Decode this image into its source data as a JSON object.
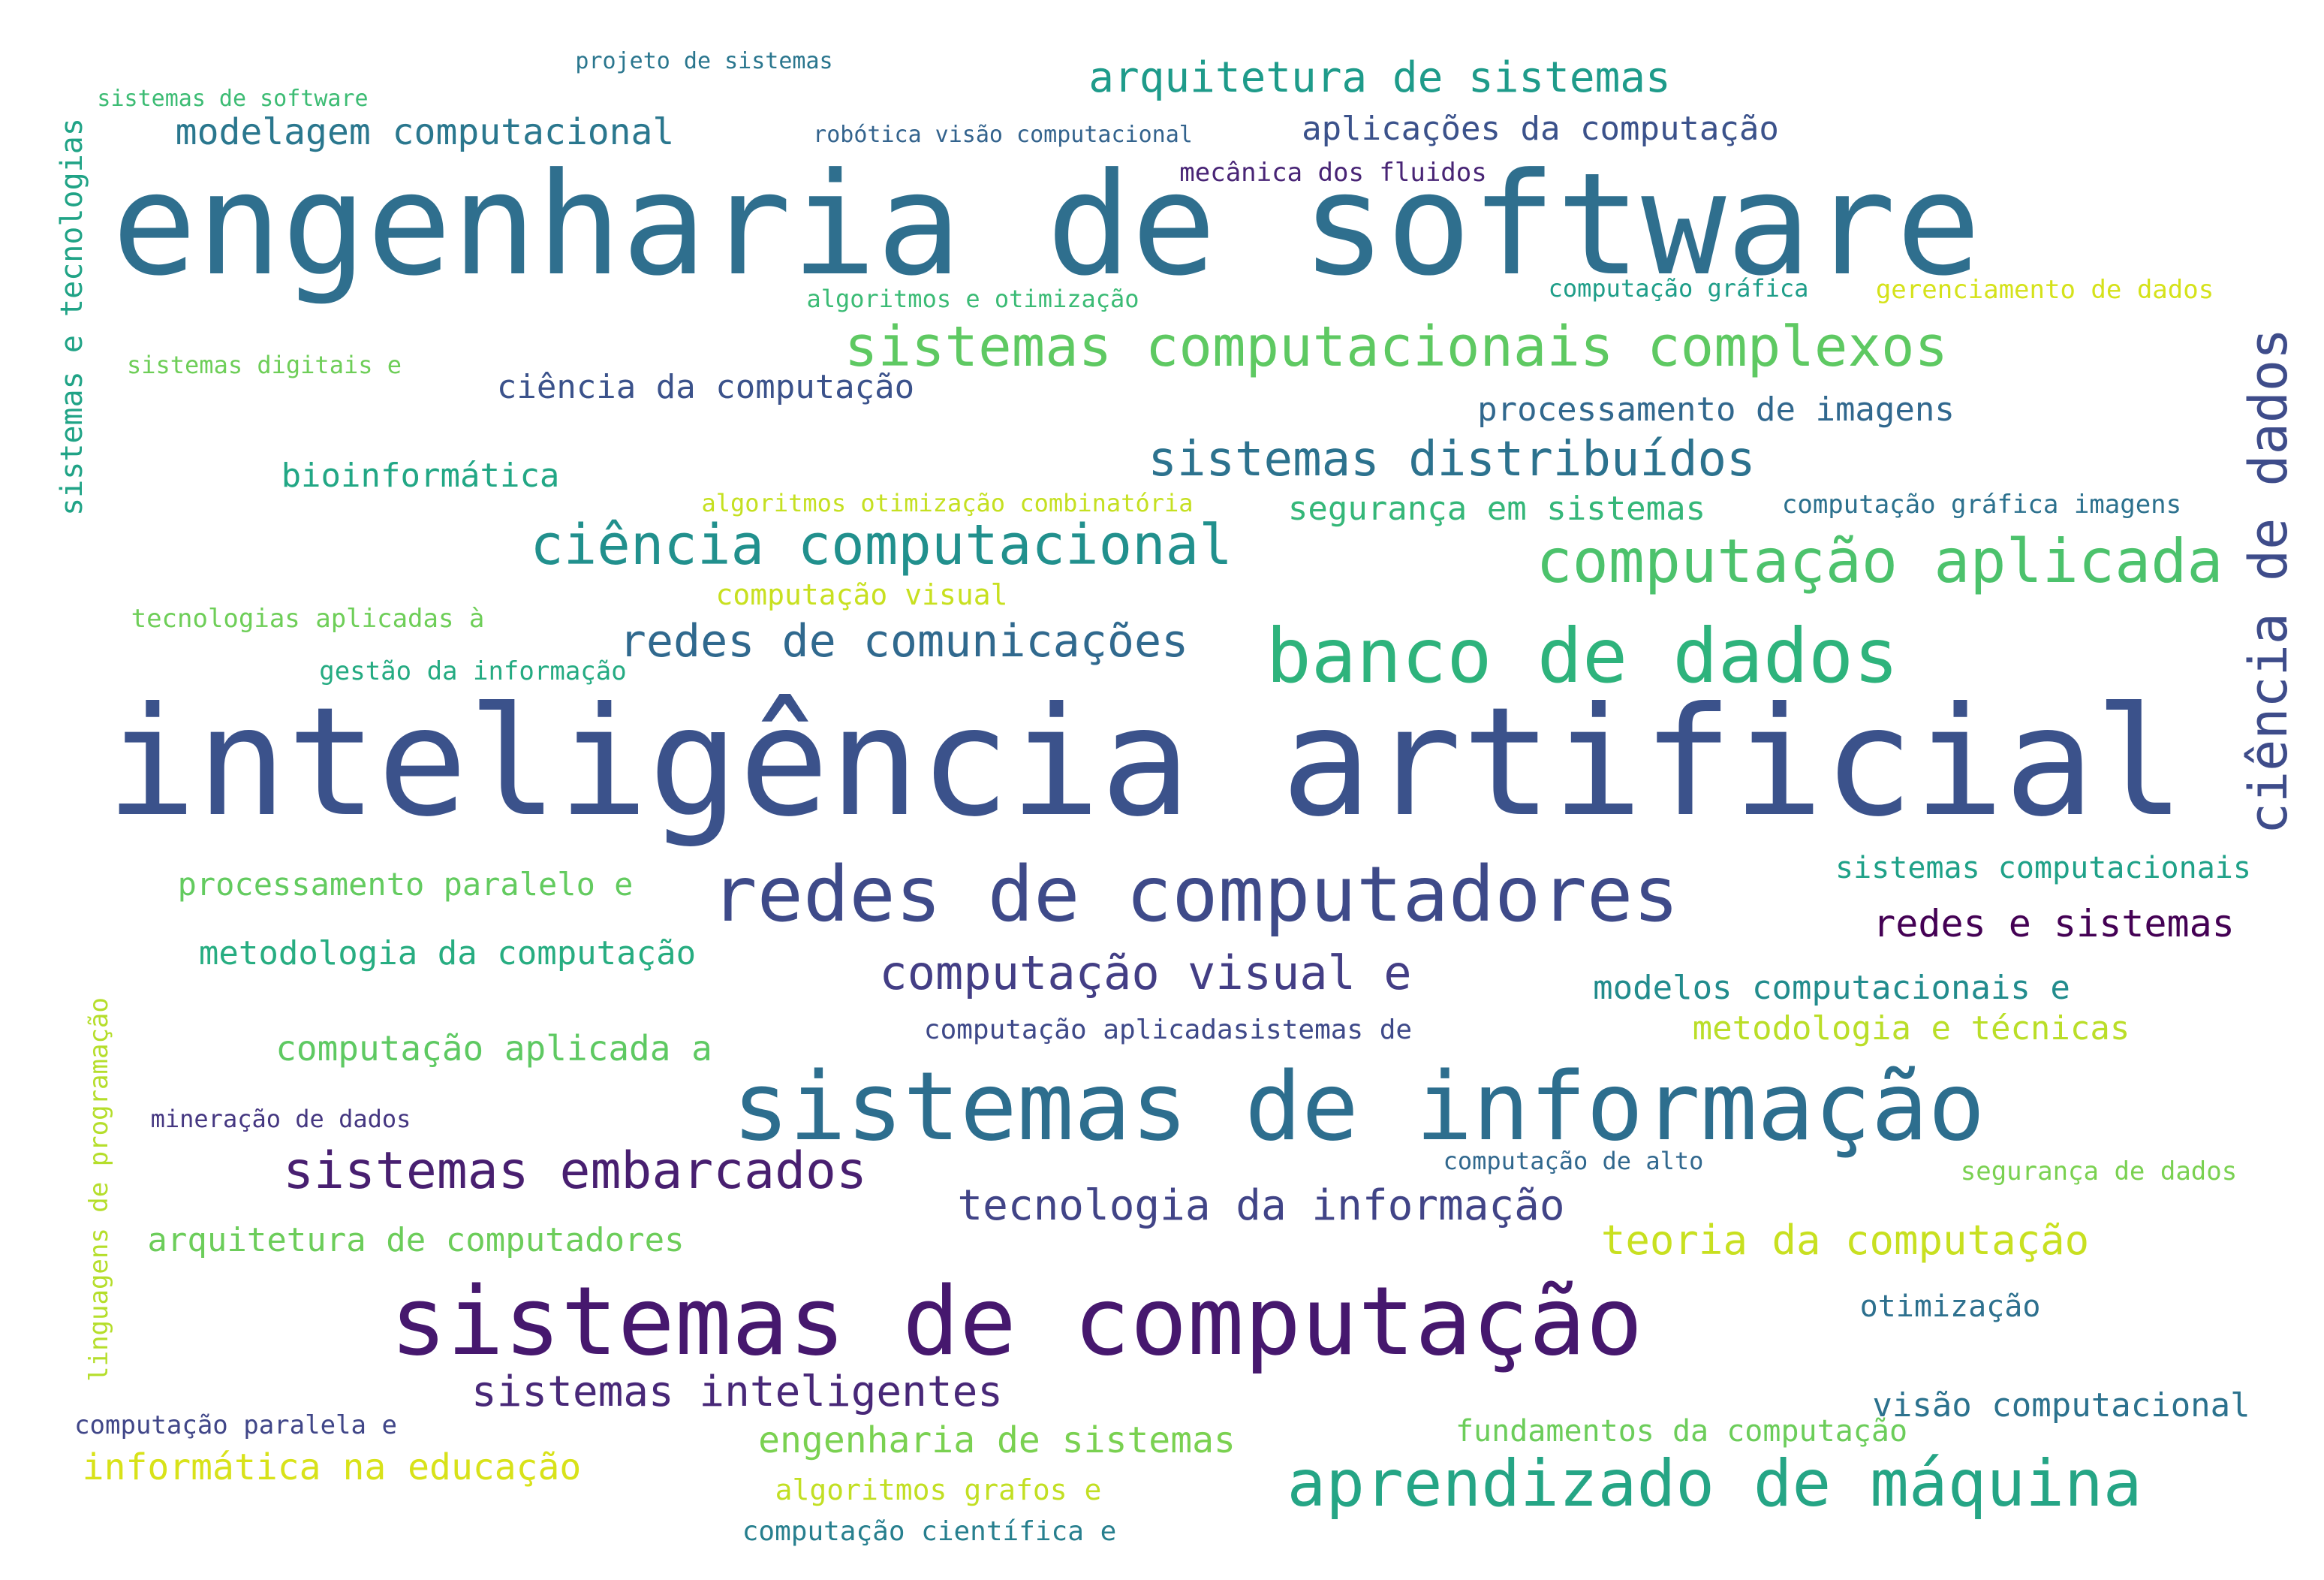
{
  "words": [
    {
      "id": "w01",
      "text": "inteligência artificial",
      "color": "#3b528b"
    },
    {
      "id": "w02",
      "text": "engenharia de software",
      "color": "#2f6f8e"
    },
    {
      "id": "w03",
      "text": "sistemas de computação",
      "color": "#46186e"
    },
    {
      "id": "w04",
      "text": "sistemas de informação",
      "color": "#2d6e8e"
    },
    {
      "id": "w05",
      "text": "redes de computadores",
      "color": "#3e4a89"
    },
    {
      "id": "w06",
      "text": "banco de dados",
      "color": "#2eb37c"
    },
    {
      "id": "w07",
      "text": "aprendizado de máquina",
      "color": "#25a585"
    },
    {
      "id": "w08",
      "text": "ciência de dados",
      "color": "#3e4c8a"
    },
    {
      "id": "w09",
      "text": "computação aplicada",
      "color": "#4cc26c"
    },
    {
      "id": "w10",
      "text": "sistemas computacionais complexos",
      "color": "#5ec962"
    },
    {
      "id": "w11",
      "text": "ciência computacional",
      "color": "#21908d"
    },
    {
      "id": "w12",
      "text": "sistemas distribuídos",
      "color": "#2c728e"
    },
    {
      "id": "w13",
      "text": "sistemas embarcados",
      "color": "#481f70"
    },
    {
      "id": "w14",
      "text": "computação visual e",
      "color": "#433e85"
    },
    {
      "id": "w15",
      "text": "redes de comunicações",
      "color": "#30698e"
    },
    {
      "id": "w16",
      "text": "arquitetura de sistemas",
      "color": "#1e9b8a"
    },
    {
      "id": "w17",
      "text": "tecnologia da informação",
      "color": "#414487"
    },
    {
      "id": "w18",
      "text": "sistemas inteligentes",
      "color": "#482878"
    },
    {
      "id": "w19",
      "text": "teoria da computação",
      "color": "#c8e020"
    },
    {
      "id": "w20",
      "text": "engenharia de sistemas",
      "color": "#7ad151"
    },
    {
      "id": "w21",
      "text": "informática na educação",
      "color": "#d8e219"
    },
    {
      "id": "w22",
      "text": "modelagem computacional",
      "color": "#2a778e"
    },
    {
      "id": "w23",
      "text": "metodologia da computação",
      "color": "#27ad81"
    },
    {
      "id": "w24",
      "text": "computação aplicada a",
      "color": "#5ec962"
    },
    {
      "id": "w25",
      "text": "arquitetura de computadores",
      "color": "#6ccd5a"
    },
    {
      "id": "w26",
      "text": "processamento paralelo e",
      "color": "#63cb5f"
    },
    {
      "id": "w27",
      "text": "bioinformática",
      "color": "#22a785"
    },
    {
      "id": "w28",
      "text": "ciência da computação",
      "color": "#3b528b"
    },
    {
      "id": "w29",
      "text": "processamento de imagens",
      "color": "#31688e"
    },
    {
      "id": "w30",
      "text": "aplicações da computação",
      "color": "#3b528b"
    },
    {
      "id": "w31",
      "text": "segurança em sistemas",
      "color": "#35b779"
    },
    {
      "id": "w32",
      "text": "redes e sistemas",
      "color": "#440154"
    },
    {
      "id": "w33",
      "text": "modelos computacionais e",
      "color": "#228c8d"
    },
    {
      "id": "w34",
      "text": "metodologia e técnicas",
      "color": "#bade28"
    },
    {
      "id": "w35",
      "text": "sistemas computacionais",
      "color": "#1fa188"
    },
    {
      "id": "w36",
      "text": "visão computacional",
      "color": "#2c728e"
    },
    {
      "id": "w37",
      "text": "fundamentos da computação",
      "color": "#6ccd5a"
    },
    {
      "id": "w38",
      "text": "otimização",
      "color": "#2d708e"
    },
    {
      "id": "w39",
      "text": "linguagens de programação",
      "color": "#b5de2b"
    },
    {
      "id": "w40",
      "text": "sistemas e tecnologias",
      "color": "#20a386"
    },
    {
      "id": "w41",
      "text": "computação paralela e",
      "color": "#404688"
    },
    {
      "id": "w42",
      "text": "algoritmos grafos e",
      "color": "#c2df23"
    },
    {
      "id": "w43",
      "text": "computação científica e",
      "color": "#277f8e"
    },
    {
      "id": "w44",
      "text": "computação visual",
      "color": "#c8e020"
    },
    {
      "id": "w45",
      "text": "tecnologias aplicadas à",
      "color": "#6ece58"
    },
    {
      "id": "w46",
      "text": "gestão da informação",
      "color": "#25ab82"
    },
    {
      "id": "w47",
      "text": "computação aplicadasistemas de",
      "color": "#3e4989"
    },
    {
      "id": "w48",
      "text": "mineração de dados",
      "color": "#453781"
    },
    {
      "id": "w49",
      "text": "computação de alto",
      "color": "#31688e"
    },
    {
      "id": "w50",
      "text": "segurança de dados",
      "color": "#7ad151"
    },
    {
      "id": "w51",
      "text": "sistemas digitais e",
      "color": "#6ece58"
    },
    {
      "id": "w52",
      "text": "algoritmos e otimização",
      "color": "#3bbb75"
    },
    {
      "id": "w53",
      "text": "algoritmos otimização combinatória",
      "color": "#c5e021"
    },
    {
      "id": "w54",
      "text": "computação gráfica imagens",
      "color": "#2c718e"
    },
    {
      "id": "w55",
      "text": "computação gráfica",
      "color": "#1f9e89"
    },
    {
      "id": "w56",
      "text": "gerenciamento de dados",
      "color": "#d5e21a"
    },
    {
      "id": "w57",
      "text": "mecânica dos fluidos",
      "color": "#482475"
    },
    {
      "id": "w58",
      "text": "robótica visão computacional",
      "color": "#33638d"
    },
    {
      "id": "w59",
      "text": "projeto de sistemas",
      "color": "#2a768e"
    },
    {
      "id": "w60",
      "text": "sistemas de software",
      "color": "#3dbc74"
    }
  ]
}
